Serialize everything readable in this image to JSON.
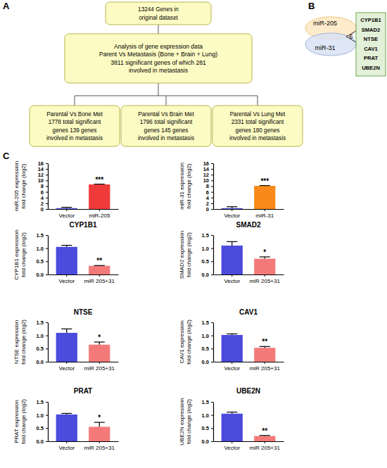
{
  "panel_labels": [
    "A",
    "B",
    "C"
  ],
  "flowchart": {
    "nodes": [
      {
        "lines": [
          "13244 Genes in",
          "original dataset"
        ]
      },
      {
        "lines": [
          "Analysis of gene expression data",
          "Parent Vs Metastasis (Bone + Brain + Lung)",
          "3811 significant genes of which 281",
          "involved in metastasis"
        ]
      },
      {
        "lines": [
          "Parental Vs Bone Met",
          "1778 total significant",
          "genes 139 genes",
          "involved in metastasis"
        ]
      },
      {
        "lines": [
          "Parental Vs Brain Met",
          "1796 total significant",
          "genes 145 genes",
          "involved in metastasis"
        ]
      },
      {
        "lines": [
          "Parental Vs Lung Met",
          "2331 total significant",
          "genes 180 genes",
          "involved in metastasis"
        ]
      }
    ]
  },
  "venn": {
    "sets": [
      "miR-205",
      "miR-31"
    ],
    "overlap_count": 6,
    "genes": [
      "CYP1B1",
      "SMAD2",
      "NTSE",
      "CAV1",
      "PRAT",
      "UBE2N"
    ]
  },
  "chart_data": [
    {
      "type": "bar",
      "ylabel": [
        "miR-205 expression",
        "fold change (log2)"
      ],
      "categories": [
        "Vector",
        "miR-205"
      ],
      "values": [
        0.3,
        8.6
      ],
      "errors": [
        0.3,
        0.1
      ],
      "colors": [
        "#4b4bdc",
        "#f03a3a"
      ],
      "ylim": [
        0,
        16
      ],
      "yticks": [
        0,
        2,
        4,
        6,
        8,
        10,
        12,
        14,
        16
      ],
      "annotation": "***"
    },
    {
      "type": "bar",
      "ylabel": [
        "miR-31 expression",
        "fold change (log2)"
      ],
      "categories": [
        "Vector",
        "miR-31"
      ],
      "values": [
        0.3,
        8.1
      ],
      "errors": [
        0.5,
        0.1
      ],
      "colors": [
        "#4b4bdc",
        "#f98a1a"
      ],
      "ylim": [
        0,
        16
      ],
      "yticks": [
        0,
        2,
        4,
        6,
        8,
        10,
        12,
        14,
        16
      ],
      "annotation": "***"
    },
    {
      "type": "bar",
      "title": "CYP1B1",
      "ylabel": [
        "CYP1B1 expression",
        "fold change (log2)"
      ],
      "categories": [
        "Vector",
        "miR 205+31"
      ],
      "values": [
        1.05,
        0.33
      ],
      "errors": [
        0.06,
        0.01
      ],
      "colors": [
        "#4b4bdc",
        "#f47a7a"
      ],
      "ylim": [
        0,
        1.5
      ],
      "yticks": [
        {
          "value": 0,
          "label": "0.0"
        },
        {
          "value": 0.5,
          "label": "0.5"
        },
        {
          "value": 1,
          "label": "1.0"
        },
        {
          "value": 1.5,
          "label": "1.5"
        }
      ],
      "annotation": "**"
    },
    {
      "type": "bar",
      "title": "SMAD2",
      "ylabel": [
        "SMAD2 expression",
        "fold change (log2)"
      ],
      "categories": [
        "Vector",
        "miR 205+31"
      ],
      "values": [
        1.1,
        0.6
      ],
      "errors": [
        0.15,
        0.07
      ],
      "colors": [
        "#4b4bdc",
        "#f47a7a"
      ],
      "ylim": [
        0,
        1.5
      ],
      "yticks": [
        {
          "value": 0,
          "label": "0.0"
        },
        {
          "value": 0.5,
          "label": "0.5"
        },
        {
          "value": 1,
          "label": "1.0"
        },
        {
          "value": 1.5,
          "label": "1.5"
        }
      ],
      "annotation": "*"
    },
    {
      "type": "bar",
      "title": "NTSE",
      "ylabel": [
        "NTSE expression",
        "fold change (log2)"
      ],
      "categories": [
        "Vector",
        "miR 205+31"
      ],
      "values": [
        1.1,
        0.65
      ],
      "errors": [
        0.15,
        0.1
      ],
      "colors": [
        "#4b4bdc",
        "#f47a7a"
      ],
      "ylim": [
        0,
        1.5
      ],
      "yticks": [
        {
          "value": 0,
          "label": "0.0"
        },
        {
          "value": 0.5,
          "label": "0.5"
        },
        {
          "value": 1,
          "label": "1.0"
        },
        {
          "value": 1.5,
          "label": "1.5"
        }
      ],
      "annotation": "*"
    },
    {
      "type": "bar",
      "title": "CAV1",
      "ylabel": [
        "CAV1 expression",
        "fold change (log2)"
      ],
      "categories": [
        "Vector",
        "miR 205+31"
      ],
      "values": [
        1.02,
        0.53
      ],
      "errors": [
        0.04,
        0.05
      ],
      "colors": [
        "#4b4bdc",
        "#f47a7a"
      ],
      "ylim": [
        0,
        1.5
      ],
      "yticks": [
        {
          "value": 0,
          "label": "0.0"
        },
        {
          "value": 0.5,
          "label": "0.5"
        },
        {
          "value": 1,
          "label": "1.0"
        },
        {
          "value": 1.5,
          "label": "1.5"
        }
      ],
      "annotation": "**"
    },
    {
      "type": "bar",
      "title": "PRAT",
      "ylabel": [
        "PRAT expression",
        "fold change (log2)"
      ],
      "categories": [
        "Vector",
        "miR 205+31"
      ],
      "values": [
        1.02,
        0.55
      ],
      "errors": [
        0.04,
        0.17
      ],
      "colors": [
        "#4b4bdc",
        "#f47a7a"
      ],
      "ylim": [
        0,
        1.5
      ],
      "yticks": [
        {
          "value": 0,
          "label": "0.0"
        },
        {
          "value": 0.5,
          "label": "0.5"
        },
        {
          "value": 1,
          "label": "1.0"
        },
        {
          "value": 1.5,
          "label": "1.5"
        }
      ],
      "annotation": "*"
    },
    {
      "type": "bar",
      "title": "UBE2N",
      "ylabel": [
        "UBE2N expression",
        "fold change (log2)"
      ],
      "categories": [
        "Vector",
        "miR 205+31"
      ],
      "values": [
        1.05,
        0.2
      ],
      "errors": [
        0.06,
        0.02
      ],
      "colors": [
        "#4b4bdc",
        "#f47a7a"
      ],
      "ylim": [
        0,
        1.5
      ],
      "yticks": [
        {
          "value": 0,
          "label": "0.0"
        },
        {
          "value": 0.5,
          "label": "0.5"
        },
        {
          "value": 1,
          "label": "1.0"
        },
        {
          "value": 1.5,
          "label": "1.5"
        }
      ],
      "annotation": "**"
    }
  ]
}
